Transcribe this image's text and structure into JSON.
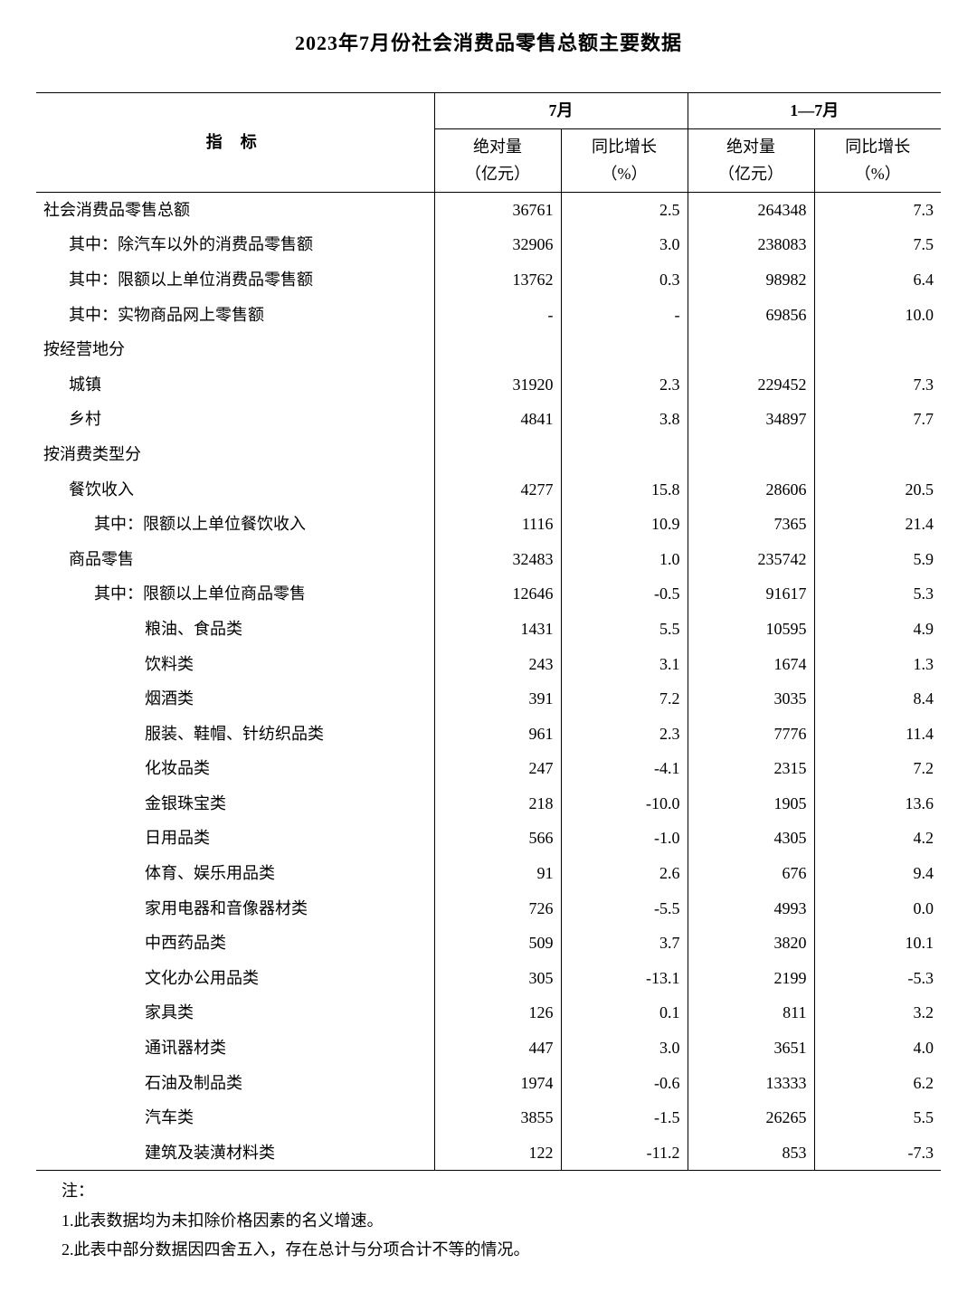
{
  "title": "2023年7月份社会消费品零售总额主要数据",
  "header": {
    "indicator": "指标",
    "period1": "7月",
    "period2": "1—7月",
    "abs_label": "绝对量",
    "abs_unit": "（亿元）",
    "growth_label": "同比增长",
    "growth_unit": "（%）"
  },
  "rows": [
    {
      "label": "社会消费品零售总额",
      "indent": 0,
      "v1": "36761",
      "v2": "2.5",
      "v3": "264348",
      "v4": "7.3"
    },
    {
      "label": "其中：除汽车以外的消费品零售额",
      "indent": 1,
      "v1": "32906",
      "v2": "3.0",
      "v3": "238083",
      "v4": "7.5"
    },
    {
      "label": "其中：限额以上单位消费品零售额",
      "indent": 1,
      "v1": "13762",
      "v2": "0.3",
      "v3": "98982",
      "v4": "6.4"
    },
    {
      "label": "其中：实物商品网上零售额",
      "indent": 1,
      "v1": "-",
      "v2": "-",
      "v3": "69856",
      "v4": "10.0"
    },
    {
      "label": "按经营地分",
      "indent": 0,
      "v1": "",
      "v2": "",
      "v3": "",
      "v4": ""
    },
    {
      "label": "城镇",
      "indent": 1,
      "v1": "31920",
      "v2": "2.3",
      "v3": "229452",
      "v4": "7.3"
    },
    {
      "label": "乡村",
      "indent": 1,
      "v1": "4841",
      "v2": "3.8",
      "v3": "34897",
      "v4": "7.7"
    },
    {
      "label": "按消费类型分",
      "indent": 0,
      "v1": "",
      "v2": "",
      "v3": "",
      "v4": ""
    },
    {
      "label": "餐饮收入",
      "indent": 1,
      "v1": "4277",
      "v2": "15.8",
      "v3": "28606",
      "v4": "20.5"
    },
    {
      "label": "其中：限额以上单位餐饮收入",
      "indent": 2,
      "v1": "1116",
      "v2": "10.9",
      "v3": "7365",
      "v4": "21.4"
    },
    {
      "label": "商品零售",
      "indent": 1,
      "v1": "32483",
      "v2": "1.0",
      "v3": "235742",
      "v4": "5.9"
    },
    {
      "label": "其中：限额以上单位商品零售",
      "indent": 2,
      "v1": "12646",
      "v2": "-0.5",
      "v3": "91617",
      "v4": "5.3"
    },
    {
      "label": "粮油、食品类",
      "indent": 3,
      "v1": "1431",
      "v2": "5.5",
      "v3": "10595",
      "v4": "4.9"
    },
    {
      "label": "饮料类",
      "indent": 3,
      "v1": "243",
      "v2": "3.1",
      "v3": "1674",
      "v4": "1.3"
    },
    {
      "label": "烟酒类",
      "indent": 3,
      "v1": "391",
      "v2": "7.2",
      "v3": "3035",
      "v4": "8.4"
    },
    {
      "label": "服装、鞋帽、针纺织品类",
      "indent": 3,
      "v1": "961",
      "v2": "2.3",
      "v3": "7776",
      "v4": "11.4"
    },
    {
      "label": "化妆品类",
      "indent": 3,
      "v1": "247",
      "v2": "-4.1",
      "v3": "2315",
      "v4": "7.2"
    },
    {
      "label": "金银珠宝类",
      "indent": 3,
      "v1": "218",
      "v2": "-10.0",
      "v3": "1905",
      "v4": "13.6"
    },
    {
      "label": "日用品类",
      "indent": 3,
      "v1": "566",
      "v2": "-1.0",
      "v3": "4305",
      "v4": "4.2"
    },
    {
      "label": "体育、娱乐用品类",
      "indent": 3,
      "v1": "91",
      "v2": "2.6",
      "v3": "676",
      "v4": "9.4"
    },
    {
      "label": "家用电器和音像器材类",
      "indent": 3,
      "v1": "726",
      "v2": "-5.5",
      "v3": "4993",
      "v4": "0.0"
    },
    {
      "label": "中西药品类",
      "indent": 3,
      "v1": "509",
      "v2": "3.7",
      "v3": "3820",
      "v4": "10.1"
    },
    {
      "label": "文化办公用品类",
      "indent": 3,
      "v1": "305",
      "v2": "-13.1",
      "v3": "2199",
      "v4": "-5.3"
    },
    {
      "label": "家具类",
      "indent": 3,
      "v1": "126",
      "v2": "0.1",
      "v3": "811",
      "v4": "3.2"
    },
    {
      "label": "通讯器材类",
      "indent": 3,
      "v1": "447",
      "v2": "3.0",
      "v3": "3651",
      "v4": "4.0"
    },
    {
      "label": "石油及制品类",
      "indent": 3,
      "v1": "1974",
      "v2": "-0.6",
      "v3": "13333",
      "v4": "6.2"
    },
    {
      "label": "汽车类",
      "indent": 3,
      "v1": "3855",
      "v2": "-1.5",
      "v3": "26265",
      "v4": "5.5"
    },
    {
      "label": "建筑及装潢材料类",
      "indent": 3,
      "v1": "122",
      "v2": "-11.2",
      "v3": "853",
      "v4": "-7.3"
    }
  ],
  "notes": {
    "label": "注：",
    "items": [
      "1.此表数据均为未扣除价格因素的名义增速。",
      "2.此表中部分数据因四舍五入，存在总计与分项合计不等的情况。"
    ]
  },
  "style": {
    "font_family": "SimSun, 宋体, serif",
    "title_fontsize": 22,
    "body_fontsize": 18,
    "text_color": "#000000",
    "background_color": "#ffffff",
    "border_color": "#000000",
    "line_height": 1.7
  }
}
